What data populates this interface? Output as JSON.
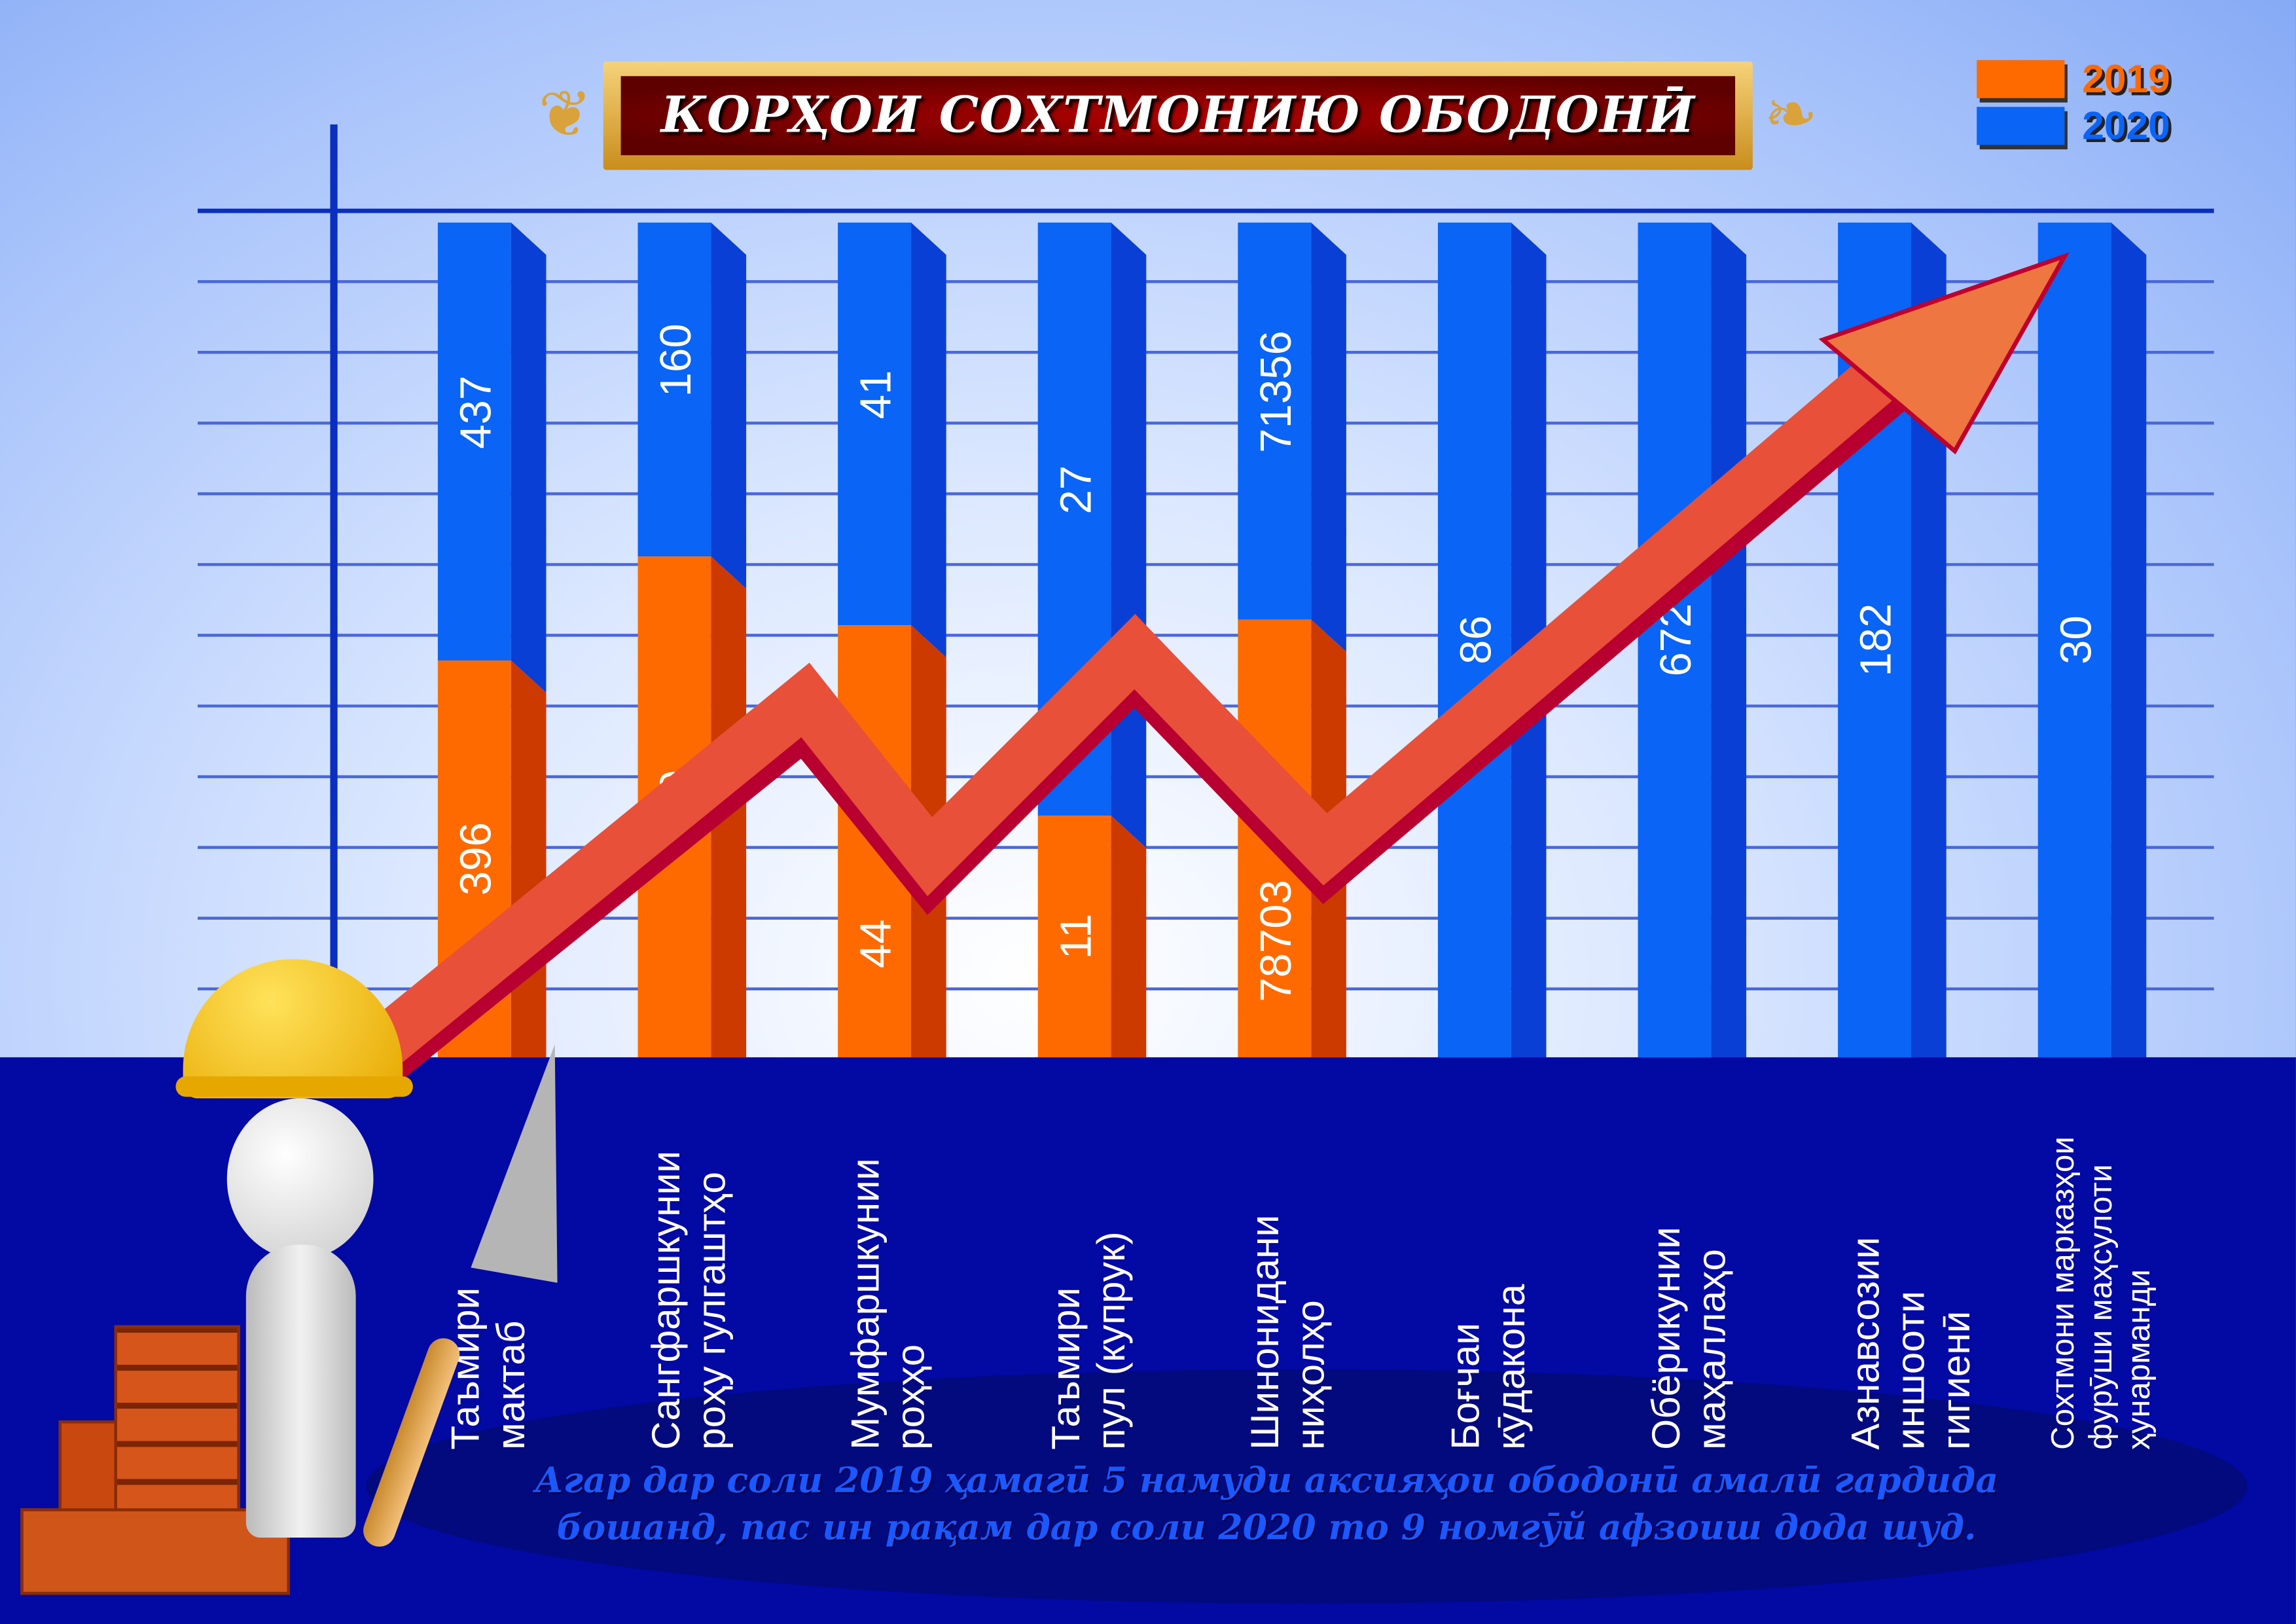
{
  "title": "КОРҲОИ СОХТМОНИЮ ОБОДОНӢ",
  "legend": [
    {
      "label": "2019",
      "color": "#ff6a00"
    },
    {
      "label": "2020",
      "color": "#0a64f5"
    }
  ],
  "note_lines": [
    "Агар дар соли 2019 ҳамагӣ 5 намуди аксияҳои ободонӣ амалӣ гардида",
    "бошанд, пас ин рақам дар соли 2020 то 9 номгӯй афзоиш дода шуд."
  ],
  "chart_data": {
    "type": "bar",
    "stacking": "percent",
    "title": "КОРҲОИ СОХТМОНИЮ ОБОДОНӢ",
    "categories": [
      "Таъмири\nмактаб",
      "Сангфаршкунии\nроҳу гулгаштҳо",
      "Мумфаршкунии\nроҳҳо",
      "Таъмири\nпул (купрук)",
      "Шинонидани\nниҳолҳо",
      "Боғчаи\nкӯдакона",
      "Обёрикунии\nмаҳаллаҳо",
      "Азнавсозии\nиншооти\nгигиенӣ",
      "Сохтмони марказҳои\nфурӯши маҳсулоти\nҳунарманди"
    ],
    "series": [
      {
        "name": "2019",
        "color": "#ff6a00",
        "values": [
          396,
          240,
          44,
          11,
          78703,
          null,
          null,
          null,
          null
        ]
      },
      {
        "name": "2020",
        "color": "#0a64f5",
        "values": [
          437,
          160,
          41,
          27,
          71356,
          86,
          672,
          182,
          30
        ]
      }
    ],
    "grid": true,
    "legend_position": "top-right",
    "trend_arrow": "upward, red-orange"
  }
}
